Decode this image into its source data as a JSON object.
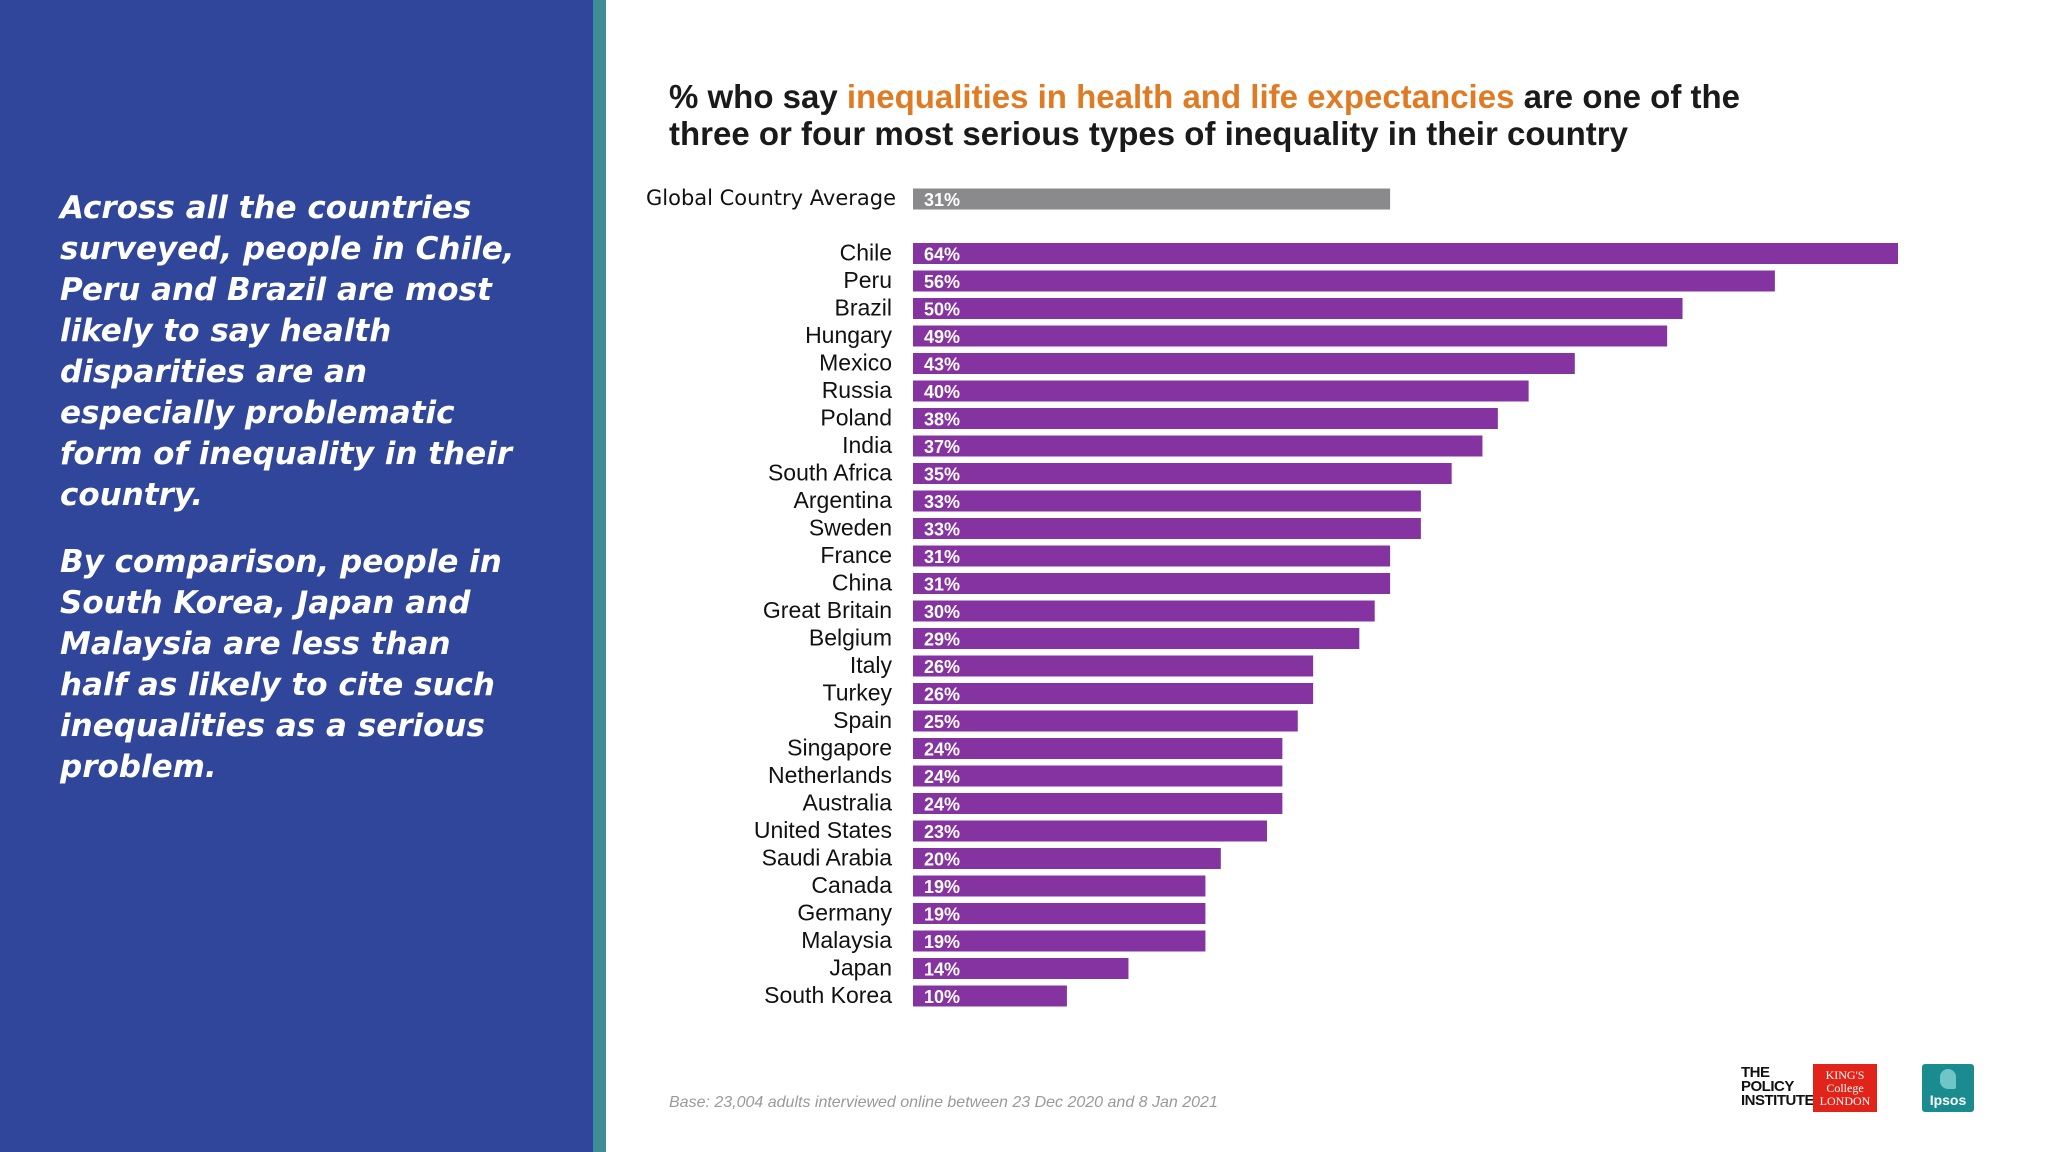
{
  "side_text": {
    "para1": "Across all the countries surveyed, people in Chile, Peru and Brazil are most likely to say health disparities are an especially problematic form of inequality in their country.",
    "para2": "By comparison, people in South Korea, Japan and Malaysia are less than half as likely to cite such inequalities as a serious problem."
  },
  "title": {
    "part1": "% who say ",
    "highlight": "inequalities in health and life expectancies",
    "part2": " are one of the three or four most serious types of inequality in their country"
  },
  "colors": {
    "panel": "#30469a",
    "stripe": "#3f8d95",
    "highlight": "#e07b24",
    "bar": "#8533a0",
    "average_bar": "#8a898c"
  },
  "footnote": "Base: 23,004 adults interviewed online between 23 Dec 2020 and 8 Jan 2021",
  "logos": {
    "policy_institute": [
      "THE",
      "POLICY",
      "INSTITUTE"
    ],
    "kings": [
      "KING'S",
      "College",
      "LONDON"
    ],
    "ipsos": "Ipsos"
  },
  "chart_data": {
    "type": "bar",
    "orientation": "horizontal",
    "average": {
      "category": "Global Country Average",
      "value": 31,
      "label": "31%"
    },
    "categories": [
      "Chile",
      "Peru",
      "Brazil",
      "Hungary",
      "Mexico",
      "Russia",
      "Poland",
      "India",
      "South Africa",
      "Argentina",
      "Sweden",
      "France",
      "China",
      "Great Britain",
      "Belgium",
      "Italy",
      "Turkey",
      "Spain",
      "Singapore",
      "Netherlands",
      "Australia",
      "United States",
      "Saudi Arabia",
      "Canada",
      "Germany",
      "Malaysia",
      "Japan",
      "South Korea"
    ],
    "values": [
      64,
      56,
      50,
      49,
      43,
      40,
      38,
      37,
      35,
      33,
      33,
      31,
      31,
      30,
      29,
      26,
      26,
      25,
      24,
      24,
      24,
      23,
      20,
      19,
      19,
      19,
      14,
      10
    ],
    "value_labels": [
      "64%",
      "56%",
      "50%",
      "49%",
      "43%",
      "40%",
      "38%",
      "37%",
      "35%",
      "33%",
      "33%",
      "31%",
      "31%",
      "30%",
      "29%",
      "26%",
      "26%",
      "25%",
      "24%",
      "24%",
      "24%",
      "23%",
      "20%",
      "19%",
      "19%",
      "19%",
      "14%",
      "10%"
    ],
    "unit": "%",
    "xlim": [
      0,
      64
    ],
    "grid": false,
    "legend": "none"
  }
}
